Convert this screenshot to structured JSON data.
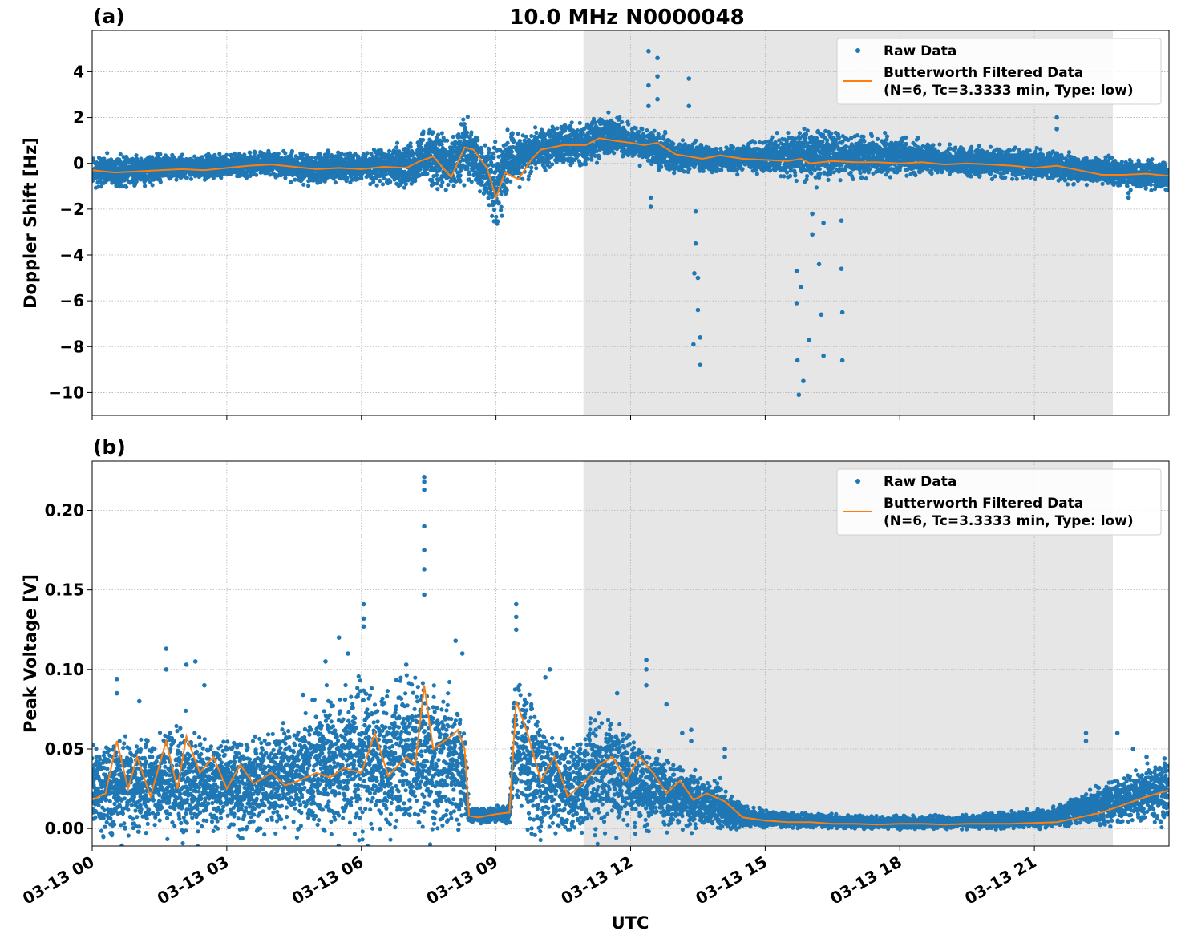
{
  "figure": {
    "title": "10.0 MHz N0000048",
    "xlabel": "UTC",
    "x_tick_labels": [
      "03-13 00",
      "03-13 03",
      "03-13 06",
      "03-13 09",
      "03-13 12",
      "03-13 15",
      "03-13 18",
      "03-13 21"
    ]
  },
  "chart_data": [
    {
      "panel_label": "(a)",
      "type": "scatter",
      "ylabel": "Doppler Shift [Hz]",
      "x_unit": "hours since 03-13 00 UTC",
      "xlim": [
        0,
        24
      ],
      "ylim": [
        -11,
        5.8
      ],
      "y_ticks": [
        4,
        2,
        0,
        -2,
        -4,
        -6,
        -8,
        -10
      ],
      "y_tick_labels": [
        "4",
        "2",
        "0",
        "−2",
        "−4",
        "−6",
        "−8",
        "−10"
      ],
      "grid": true,
      "shaded_interval": [
        10.95,
        22.75
      ],
      "legend": {
        "placement": "top-right",
        "entries": [
          "Raw Data",
          "Butterworth Filtered Data\n(N=6, Tc=3.3333 min, Type: low)"
        ]
      },
      "series": [
        {
          "name": "Raw Data",
          "kind": "points",
          "color": "#1f77b4",
          "band": [
            [
              0,
              -0.8,
              0.1
            ],
            [
              1,
              -0.9,
              0.2
            ],
            [
              2,
              -0.5,
              0.2
            ],
            [
              3,
              -0.5,
              0.3
            ],
            [
              4,
              -0.4,
              0.4
            ],
            [
              5,
              -0.8,
              0.3
            ],
            [
              6,
              -0.6,
              0.3
            ],
            [
              7,
              -0.8,
              0.6
            ],
            [
              7.5,
              -0.6,
              1.2
            ],
            [
              8,
              -0.9,
              0.8
            ],
            [
              8.3,
              -0.5,
              1.8
            ],
            [
              8.7,
              -1.0,
              0.5
            ],
            [
              9,
              -2.4,
              0.5
            ],
            [
              9.3,
              -0.8,
              1.0
            ],
            [
              10,
              0.0,
              1.3
            ],
            [
              11,
              0.2,
              1.6
            ],
            [
              11.5,
              0.6,
              2.0
            ],
            [
              12,
              0.4,
              1.5
            ],
            [
              12.5,
              0.0,
              1.3
            ],
            [
              13,
              -0.3,
              0.8
            ],
            [
              14,
              -0.2,
              0.6
            ],
            [
              15,
              -0.3,
              0.8
            ],
            [
              16,
              -0.5,
              1.3
            ],
            [
              17,
              -0.4,
              1.0
            ],
            [
              18,
              -0.3,
              1.0
            ],
            [
              19,
              -0.3,
              0.6
            ],
            [
              20,
              -0.4,
              0.5
            ],
            [
              21,
              -0.5,
              0.5
            ],
            [
              22,
              -0.7,
              0.2
            ],
            [
              23,
              -0.9,
              0.0
            ],
            [
              24,
              -1.0,
              -0.1
            ]
          ],
          "outliers": [
            [
              12.4,
              4.9
            ],
            [
              12.4,
              3.4
            ],
            [
              12.4,
              2.5
            ],
            [
              12.45,
              -1.5
            ],
            [
              12.45,
              -1.9
            ],
            [
              12.6,
              4.6
            ],
            [
              12.6,
              3.8
            ],
            [
              12.6,
              2.8
            ],
            [
              13.3,
              3.7
            ],
            [
              13.3,
              2.5
            ],
            [
              13.45,
              -2.1
            ],
            [
              13.45,
              -3.5
            ],
            [
              13.5,
              -5.0
            ],
            [
              13.5,
              -6.4
            ],
            [
              13.55,
              -7.6
            ],
            [
              13.55,
              -8.8
            ],
            [
              13.42,
              -4.8
            ],
            [
              13.4,
              -7.9
            ],
            [
              15.7,
              -4.7
            ],
            [
              15.7,
              -6.1
            ],
            [
              15.72,
              -8.6
            ],
            [
              15.75,
              -10.1
            ],
            [
              15.8,
              -5.4
            ],
            [
              15.85,
              -9.5
            ],
            [
              15.98,
              -7.7
            ],
            [
              16.05,
              -2.2
            ],
            [
              16.05,
              -3.1
            ],
            [
              16.2,
              -4.4
            ],
            [
              16.25,
              -6.6
            ],
            [
              16.3,
              -8.4
            ],
            [
              16.3,
              -2.6
            ],
            [
              16.7,
              -2.5
            ],
            [
              16.7,
              -4.6
            ],
            [
              16.72,
              -6.5
            ],
            [
              16.72,
              -8.6
            ],
            [
              21.5,
              2.0
            ],
            [
              21.5,
              1.5
            ],
            [
              23.1,
              -1.5
            ],
            [
              23.1,
              -1.3
            ]
          ]
        },
        {
          "name": "Butterworth Filtered Data\n(N=6, Tc=3.3333 min, Type: low)",
          "kind": "line",
          "color": "#ff7f0e",
          "x": [
            0,
            0.5,
            1,
            1.5,
            2,
            2.5,
            3,
            3.5,
            4,
            4.5,
            5,
            5.5,
            6,
            6.5,
            7,
            7.3,
            7.6,
            8,
            8.3,
            8.5,
            8.8,
            9,
            9.2,
            9.5,
            9.8,
            10,
            10.5,
            11,
            11.3,
            11.6,
            12,
            12.3,
            12.6,
            13,
            13.3,
            13.6,
            14,
            14.5,
            15,
            15.5,
            15.8,
            16,
            16.5,
            17,
            17.5,
            18,
            18.5,
            19,
            19.5,
            20,
            20.5,
            21,
            21.5,
            22,
            22.5,
            23,
            23.5,
            24
          ],
          "y": [
            -0.3,
            -0.4,
            -0.35,
            -0.3,
            -0.25,
            -0.3,
            -0.2,
            -0.1,
            -0.05,
            -0.15,
            -0.25,
            -0.2,
            -0.25,
            -0.15,
            -0.2,
            0.1,
            0.3,
            -0.6,
            0.7,
            0.6,
            -0.2,
            -1.5,
            -0.4,
            -0.7,
            0.2,
            0.6,
            0.8,
            0.8,
            1.1,
            1.0,
            0.9,
            0.8,
            0.9,
            0.4,
            0.3,
            0.2,
            0.35,
            0.2,
            0.15,
            0.1,
            0.2,
            0.0,
            0.1,
            0.05,
            0.05,
            0.0,
            0.05,
            -0.05,
            0.0,
            -0.05,
            -0.1,
            -0.2,
            -0.1,
            -0.3,
            -0.5,
            -0.5,
            -0.45,
            -0.55
          ]
        }
      ]
    },
    {
      "panel_label": "(b)",
      "type": "scatter",
      "ylabel": "Peak Voltage [V]",
      "x_unit": "hours since 03-13 00 UTC",
      "xlim": [
        0,
        24
      ],
      "ylim": [
        -0.011,
        0.231
      ],
      "y_ticks": [
        0.0,
        0.05,
        0.1,
        0.15,
        0.2
      ],
      "y_tick_labels": [
        "0.00",
        "0.05",
        "0.10",
        "0.15",
        "0.20"
      ],
      "grid": true,
      "shaded_interval": [
        10.95,
        22.75
      ],
      "legend": {
        "placement": "top-right",
        "entries": [
          "Raw Data",
          "Butterworth Filtered Data\n(N=6, Tc=3.3333 min, Type: low)"
        ]
      },
      "series": [
        {
          "name": "Raw Data",
          "kind": "points",
          "color": "#1f77b4",
          "band": [
            [
              0,
              0.005,
              0.045
            ],
            [
              0.5,
              0.005,
              0.05
            ],
            [
              1,
              0.005,
              0.05
            ],
            [
              1.5,
              0.005,
              0.05
            ],
            [
              2,
              0.005,
              0.06
            ],
            [
              2.5,
              0.005,
              0.05
            ],
            [
              3,
              0.005,
              0.05
            ],
            [
              3.5,
              0.005,
              0.05
            ],
            [
              4,
              0.005,
              0.055
            ],
            [
              4.5,
              0.01,
              0.06
            ],
            [
              5,
              0.01,
              0.07
            ],
            [
              5.5,
              0.01,
              0.075
            ],
            [
              6,
              0.01,
              0.085
            ],
            [
              6.5,
              0.01,
              0.075
            ],
            [
              7,
              0.01,
              0.085
            ],
            [
              7.5,
              0.01,
              0.08
            ],
            [
              8,
              0.01,
              0.075
            ],
            [
              8.3,
              0.01,
              0.06
            ],
            [
              8.4,
              0.005,
              0.012
            ],
            [
              8.8,
              0.005,
              0.012
            ],
            [
              9.3,
              0.005,
              0.013
            ],
            [
              9.4,
              0.02,
              0.09
            ],
            [
              9.8,
              0.01,
              0.07
            ],
            [
              10.3,
              0.005,
              0.05
            ],
            [
              10.8,
              0.005,
              0.045
            ],
            [
              11.3,
              0.01,
              0.065
            ],
            [
              11.8,
              0.01,
              0.06
            ],
            [
              12.3,
              0.005,
              0.045
            ],
            [
              13,
              0.005,
              0.035
            ],
            [
              13.5,
              0.003,
              0.03
            ],
            [
              14,
              0.003,
              0.025
            ],
            [
              14.5,
              0.002,
              0.012
            ],
            [
              15,
              0.002,
              0.01
            ],
            [
              16,
              0.002,
              0.008
            ],
            [
              17,
              0.001,
              0.007
            ],
            [
              18,
              0.001,
              0.007
            ],
            [
              19,
              0.001,
              0.007
            ],
            [
              20,
              0.001,
              0.008
            ],
            [
              21,
              0.002,
              0.01
            ],
            [
              21.5,
              0.003,
              0.013
            ],
            [
              22,
              0.005,
              0.018
            ],
            [
              22.5,
              0.005,
              0.025
            ],
            [
              23,
              0.007,
              0.03
            ],
            [
              23.5,
              0.008,
              0.035
            ],
            [
              24,
              0.008,
              0.04
            ]
          ],
          "outliers": [
            [
              0.55,
              0.094
            ],
            [
              0.55,
              0.085
            ],
            [
              1.05,
              0.08
            ],
            [
              1.65,
              0.113
            ],
            [
              1.65,
              0.1
            ],
            [
              2.1,
              0.103
            ],
            [
              2.3,
              0.105
            ],
            [
              2.5,
              0.09
            ],
            [
              4.7,
              0.084
            ],
            [
              5.2,
              0.105
            ],
            [
              5.5,
              0.12
            ],
            [
              5.7,
              0.11
            ],
            [
              6.05,
              0.141
            ],
            [
              6.05,
              0.132
            ],
            [
              6.05,
              0.127
            ],
            [
              7.0,
              0.103
            ],
            [
              7.4,
              0.221
            ],
            [
              7.4,
              0.218
            ],
            [
              7.4,
              0.213
            ],
            [
              7.4,
              0.19
            ],
            [
              7.4,
              0.175
            ],
            [
              7.4,
              0.163
            ],
            [
              7.4,
              0.147
            ],
            [
              8.1,
              0.118
            ],
            [
              8.25,
              0.11
            ],
            [
              9.45,
              0.141
            ],
            [
              9.45,
              0.133
            ],
            [
              9.45,
              0.125
            ],
            [
              10.2,
              0.1
            ],
            [
              10.1,
              0.095
            ],
            [
              11.7,
              0.085
            ],
            [
              12.35,
              0.106
            ],
            [
              12.35,
              0.1
            ],
            [
              12.35,
              0.09
            ],
            [
              12.8,
              0.078
            ],
            [
              13.15,
              0.06
            ],
            [
              13.35,
              0.062
            ],
            [
              13.35,
              0.055
            ],
            [
              14.1,
              0.05
            ],
            [
              14.1,
              0.045
            ],
            [
              22.15,
              0.06
            ],
            [
              22.15,
              0.055
            ],
            [
              22.85,
              0.06
            ],
            [
              23.2,
              0.05
            ],
            [
              23.5,
              0.045
            ],
            [
              23.9,
              0.044
            ]
          ]
        },
        {
          "name": "Butterworth Filtered Data\n(N=6, Tc=3.3333 min, Type: low)",
          "kind": "line",
          "color": "#ff7f0e",
          "x": [
            0,
            0.3,
            0.55,
            0.8,
            1,
            1.3,
            1.65,
            1.9,
            2.1,
            2.4,
            2.7,
            3,
            3.3,
            3.6,
            4,
            4.3,
            4.6,
            5,
            5.3,
            5.6,
            6,
            6.3,
            6.6,
            7,
            7.2,
            7.4,
            7.6,
            8,
            8.15,
            8.3,
            8.4,
            8.6,
            9,
            9.3,
            9.45,
            9.7,
            10,
            10.3,
            10.6,
            11,
            11.3,
            11.6,
            11.9,
            12.2,
            12.5,
            12.8,
            13.1,
            13.4,
            13.7,
            14.1,
            14.5,
            15,
            15.5,
            16,
            16.5,
            17,
            17.5,
            18,
            18.5,
            19,
            19.5,
            20,
            20.5,
            21,
            21.5,
            22,
            22.5,
            23,
            23.5,
            24
          ],
          "y": [
            0.018,
            0.022,
            0.055,
            0.025,
            0.045,
            0.02,
            0.055,
            0.025,
            0.058,
            0.035,
            0.045,
            0.025,
            0.04,
            0.028,
            0.035,
            0.027,
            0.03,
            0.035,
            0.032,
            0.038,
            0.035,
            0.06,
            0.033,
            0.045,
            0.04,
            0.09,
            0.05,
            0.058,
            0.062,
            0.05,
            0.008,
            0.007,
            0.009,
            0.01,
            0.08,
            0.06,
            0.03,
            0.045,
            0.02,
            0.03,
            0.04,
            0.045,
            0.03,
            0.045,
            0.035,
            0.022,
            0.03,
            0.018,
            0.022,
            0.017,
            0.007,
            0.005,
            0.004,
            0.004,
            0.003,
            0.003,
            0.0025,
            0.003,
            0.003,
            0.0025,
            0.003,
            0.003,
            0.003,
            0.0035,
            0.004,
            0.007,
            0.01,
            0.015,
            0.02,
            0.024
          ]
        }
      ]
    }
  ]
}
